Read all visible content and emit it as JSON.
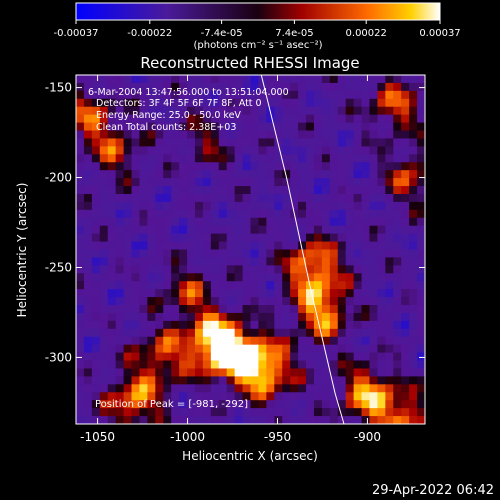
{
  "chart_data": {
    "type": "heatmap",
    "title": "Reconstructed RHESSI Image",
    "xlabel": "Heliocentric X (arcsec)",
    "ylabel": "Heliocentric Y (arcsec)",
    "xlim": [
      -1062,
      -868
    ],
    "ylim": [
      -337,
      -143
    ],
    "x_ticks": [
      -1050,
      -1000,
      -950,
      -900
    ],
    "x_tick_labels": [
      "-1050",
      "-1000",
      "-950",
      "-900"
    ],
    "y_ticks": [
      -150,
      -200,
      -250,
      -300
    ],
    "y_tick_labels": [
      "-150",
      "-200",
      "-250",
      "-300"
    ],
    "colorbar": {
      "range": [
        -0.00037,
        0.00037
      ],
      "ticks": [
        -0.00037,
        -0.00022,
        -7.4e-05,
        7.4e-05,
        0.00022,
        0.00037
      ],
      "tick_labels": [
        "-0.00037",
        "-0.00022",
        "-7.4e-05",
        "7.4e-05",
        "0.00022",
        "0.00037"
      ],
      "units_text": "(photons cm⁻² s⁻¹ asec⁻²)",
      "colormap": "blue-purple-red-yellow-white"
    },
    "annotations": [
      "6-Mar-2004 13:47:56.000 to 13:51:04.000",
      "Detectors: 3F 4F 5F 6F 7F 8F, Att 0",
      "Energy Range: 25.0 - 50.0 keV",
      "Clean   Total counts: 2.38E+03"
    ],
    "peak_label": "Position of Peak = [-981, -292]",
    "peak_position": [
      -981,
      -292
    ],
    "limb_curve": [
      [
        -959,
        -143
      ],
      [
        -945,
        -200
      ],
      [
        -932,
        -260
      ],
      [
        -918,
        -320
      ],
      [
        -913,
        -337
      ]
    ],
    "bright_sources": [
      {
        "x": -985,
        "y": -292,
        "strength": 1.0
      },
      {
        "x": -970,
        "y": -300,
        "strength": 0.9
      },
      {
        "x": -955,
        "y": -308,
        "strength": 0.75
      },
      {
        "x": -930,
        "y": -250,
        "strength": 0.85
      },
      {
        "x": -925,
        "y": -275,
        "strength": 0.8
      },
      {
        "x": -900,
        "y": -320,
        "strength": 0.8
      },
      {
        "x": -880,
        "y": -335,
        "strength": 0.7
      },
      {
        "x": -1030,
        "y": -325,
        "strength": 0.75
      },
      {
        "x": -1015,
        "y": -300,
        "strength": 0.6
      },
      {
        "x": -1055,
        "y": -165,
        "strength": 0.55
      },
      {
        "x": -1040,
        "y": -185,
        "strength": 0.5
      },
      {
        "x": -885,
        "y": -160,
        "strength": 0.6
      },
      {
        "x": -875,
        "y": -200,
        "strength": 0.55
      },
      {
        "x": -1000,
        "y": -265,
        "strength": 0.5
      },
      {
        "x": -990,
        "y": -180,
        "strength": 0.35
      }
    ]
  },
  "footer_date": "29-Apr-2022 06:42"
}
